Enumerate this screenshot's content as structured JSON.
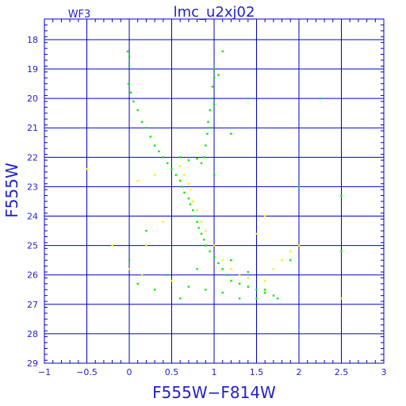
{
  "chart_data": {
    "type": "scatter",
    "title": "lmc_u2xj02",
    "chip_label": "WF3",
    "xlabel": "F555W−F814W",
    "ylabel": "F555W",
    "xlim": [
      -1,
      3
    ],
    "ylim": [
      29,
      17.3
    ],
    "y_inverted": true,
    "grid": true,
    "x_ticks": [
      -1,
      -0.5,
      0,
      0.5,
      1,
      1.5,
      2,
      2.5,
      3
    ],
    "x_tick_labels": [
      "−1",
      "−0.5",
      "0",
      "0.5",
      "1",
      "1.5",
      "2",
      "2.5",
      "3"
    ],
    "y_ticks": [
      18,
      19,
      20,
      21,
      22,
      23,
      24,
      25,
      26,
      27,
      28,
      29
    ],
    "y_tick_labels": [
      "18",
      "19",
      "20",
      "21",
      "22",
      "23",
      "24",
      "25",
      "26",
      "27",
      "28",
      "29"
    ],
    "series": [
      {
        "color": "#00ee00",
        "points": [
          [
            -0.02,
            18.4
          ],
          [
            0.0,
            18.6
          ],
          [
            0.0,
            18.9
          ],
          [
            -0.01,
            19.5
          ],
          [
            0.02,
            19.8
          ],
          [
            0.05,
            20.1
          ],
          [
            0.1,
            20.4
          ],
          [
            0.15,
            20.8
          ],
          [
            0.2,
            21.0
          ],
          [
            0.25,
            21.3
          ],
          [
            0.3,
            21.6
          ],
          [
            0.35,
            21.8
          ],
          [
            0.4,
            22.0
          ],
          [
            0.45,
            22.2
          ],
          [
            0.5,
            22.4
          ],
          [
            0.55,
            22.6
          ],
          [
            0.6,
            22.8
          ],
          [
            0.62,
            23.0
          ],
          [
            0.65,
            23.2
          ],
          [
            0.7,
            23.4
          ],
          [
            0.72,
            23.6
          ],
          [
            0.75,
            23.8
          ],
          [
            0.78,
            24.0
          ],
          [
            0.8,
            24.2
          ],
          [
            0.82,
            24.4
          ],
          [
            0.85,
            24.6
          ],
          [
            0.88,
            24.8
          ],
          [
            0.9,
            25.0
          ],
          [
            0.95,
            25.2
          ],
          [
            1.0,
            25.4
          ],
          [
            1.05,
            25.6
          ],
          [
            1.1,
            25.8
          ],
          [
            1.15,
            26.0
          ],
          [
            1.2,
            26.2
          ],
          [
            1.3,
            26.3
          ],
          [
            1.4,
            26.4
          ],
          [
            1.5,
            26.5
          ],
          [
            1.6,
            26.6
          ],
          [
            1.7,
            26.7
          ],
          [
            1.75,
            26.8
          ],
          [
            1.0,
            19.0
          ],
          [
            1.0,
            19.3
          ],
          [
            0.98,
            19.6
          ],
          [
            0.97,
            20.0
          ],
          [
            0.95,
            20.4
          ],
          [
            0.93,
            20.8
          ],
          [
            0.92,
            21.2
          ],
          [
            0.9,
            21.6
          ],
          [
            0.88,
            22.0
          ],
          [
            0.85,
            22.2
          ],
          [
            0.6,
            22.0
          ],
          [
            0.7,
            22.1
          ],
          [
            0.8,
            22.05
          ],
          [
            1.1,
            18.4
          ],
          [
            1.05,
            19.2
          ],
          [
            1.0,
            20.2
          ],
          [
            0.95,
            21.0
          ],
          [
            1.4,
            20.0
          ],
          [
            1.2,
            21.2
          ],
          [
            1.0,
            22.6
          ],
          [
            0.8,
            25.8
          ],
          [
            0.7,
            26.4
          ],
          [
            0.6,
            26.8
          ],
          [
            0.9,
            26.5
          ],
          [
            1.1,
            26.6
          ],
          [
            1.3,
            26.8
          ],
          [
            1.5,
            26.8
          ],
          [
            1.6,
            26.5
          ],
          [
            1.2,
            25.5
          ],
          [
            1.4,
            25.9
          ],
          [
            2.25,
            20.0
          ],
          [
            2.0,
            23.0
          ],
          [
            2.5,
            23.3
          ],
          [
            2.5,
            25.2
          ],
          [
            0.2,
            24.5
          ],
          [
            0.0,
            25.5
          ],
          [
            0.1,
            26.3
          ],
          [
            0.3,
            26.5
          ],
          [
            0.45,
            26.0
          ],
          [
            1.9,
            25.5
          ]
        ]
      },
      {
        "color": "#ffee00",
        "points": [
          [
            0.6,
            22.3
          ],
          [
            0.65,
            22.6
          ],
          [
            0.7,
            22.9
          ],
          [
            0.72,
            23.1
          ],
          [
            0.75,
            23.5
          ],
          [
            0.8,
            23.8
          ],
          [
            0.85,
            24.2
          ],
          [
            0.9,
            24.5
          ],
          [
            1.0,
            25.0
          ],
          [
            1.1,
            25.5
          ],
          [
            1.2,
            25.8
          ],
          [
            1.3,
            26.0
          ],
          [
            1.4,
            26.1
          ],
          [
            1.6,
            26.2
          ],
          [
            1.7,
            25.8
          ],
          [
            1.8,
            25.5
          ],
          [
            1.9,
            25.2
          ],
          [
            0.3,
            22.6
          ],
          [
            0.1,
            22.8
          ],
          [
            0.2,
            25.0
          ],
          [
            0.0,
            25.8
          ],
          [
            0.15,
            26.0
          ],
          [
            0.5,
            26.2
          ],
          [
            0.4,
            24.2
          ],
          [
            1.5,
            24.6
          ],
          [
            1.6,
            24.0
          ],
          [
            2.0,
            25.0
          ],
          [
            -0.5,
            22.4
          ],
          [
            -0.2,
            25.0
          ],
          [
            2.5,
            26.8
          ]
        ]
      }
    ]
  }
}
